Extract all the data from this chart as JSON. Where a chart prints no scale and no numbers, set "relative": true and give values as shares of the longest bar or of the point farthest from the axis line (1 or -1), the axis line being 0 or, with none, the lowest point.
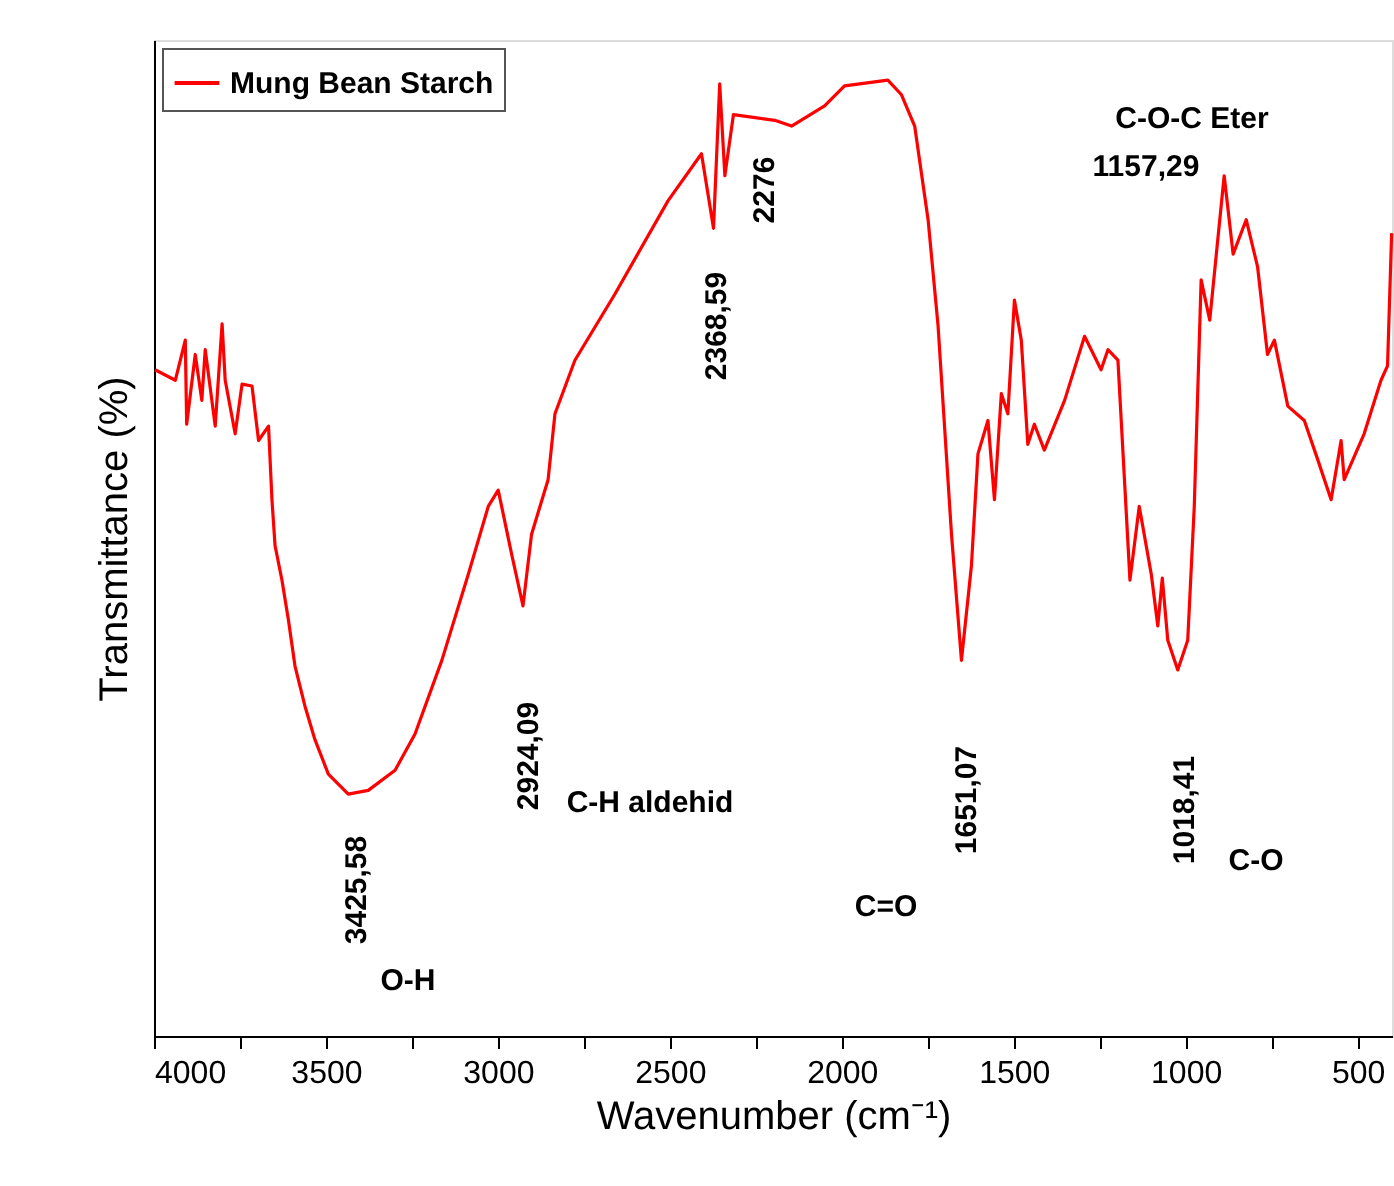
{
  "chart_data": {
    "type": "line",
    "relative": true,
    "xlabel": "Wavenumber (cm⁻¹)",
    "ylabel": "Transmittance (%)",
    "xlim": [
      4000,
      400
    ],
    "xticks": [
      4000,
      {
        "value": 3750,
        "label": null
      },
      3500,
      {
        "value": 3250,
        "label": null
      },
      3000,
      {
        "value": 2750,
        "label": null
      },
      2500,
      {
        "value": 2250,
        "label": null
      },
      2000,
      {
        "value": 1750,
        "label": null
      },
      1500,
      {
        "value": 1250,
        "label": null
      },
      1000,
      {
        "value": 750,
        "label": null
      },
      500
    ],
    "tick_labels": "x",
    "grid": false,
    "legend": "top left",
    "marker": "none",
    "line_style": "solid",
    "series": [
      {
        "name": "Mung Bean Starch",
        "color": "#ff0000",
        "x": [
          3997,
          3938,
          3909,
          3905,
          3880,
          3861,
          3851,
          3822,
          3802,
          3793,
          3764,
          3744,
          3715,
          3696,
          3667,
          3657,
          3648,
          3628,
          3609,
          3590,
          3561,
          3532,
          3493,
          3435,
          3377,
          3299,
          3241,
          3163,
          3086,
          3028,
          2999,
          2960,
          2927,
          2902,
          2854,
          2834,
          2776,
          2660,
          2505,
          2408,
          2373,
          2355,
          2340,
          2315,
          2195,
          2146,
          2050,
          1992,
          1866,
          1827,
          1788,
          1749,
          1720,
          1681,
          1652,
          1623,
          1604,
          1575,
          1556,
          1536,
          1517,
          1498,
          1478,
          1459,
          1440,
          1411,
          1352,
          1294,
          1246,
          1226,
          1197,
          1162,
          1135,
          1100,
          1081,
          1068,
          1052,
          1023,
          994,
          975,
          955,
          930,
          888,
          862,
          824,
          791,
          762,
          742,
          703,
          655,
          616,
          577,
          548,
          539,
          481,
          432,
          413,
          401
        ],
        "values": [
          0.697,
          0.686,
          0.728,
          0.64,
          0.713,
          0.665,
          0.718,
          0.638,
          0.745,
          0.686,
          0.63,
          0.682,
          0.68,
          0.623,
          0.638,
          0.561,
          0.513,
          0.477,
          0.435,
          0.387,
          0.345,
          0.31,
          0.274,
          0.253,
          0.257,
          0.278,
          0.316,
          0.393,
          0.483,
          0.554,
          0.571,
          0.504,
          0.45,
          0.525,
          0.582,
          0.651,
          0.707,
          0.776,
          0.874,
          0.923,
          0.845,
          0.996,
          0.9,
          0.964,
          0.958,
          0.952,
          0.973,
          0.994,
          1.0,
          0.985,
          0.952,
          0.854,
          0.743,
          0.525,
          0.393,
          0.492,
          0.609,
          0.644,
          0.561,
          0.672,
          0.651,
          0.77,
          0.728,
          0.619,
          0.64,
          0.613,
          0.665,
          0.732,
          0.697,
          0.718,
          0.707,
          0.477,
          0.554,
          0.483,
          0.429,
          0.479,
          0.414,
          0.383,
          0.414,
          0.554,
          0.791,
          0.749,
          0.9,
          0.818,
          0.854,
          0.805,
          0.713,
          0.728,
          0.659,
          0.644,
          0.603,
          0.561,
          0.623,
          0.582,
          0.63,
          0.686,
          0.701,
          0.84
        ]
      }
    ],
    "annotations": [
      "3425,58",
      "O-H",
      "2924,09",
      "C-H aldehid",
      "2368,59",
      "2276",
      "1651,07",
      "C=O",
      "1018,41",
      "C-O",
      "C-O-C Eter",
      "1157,29"
    ]
  }
}
